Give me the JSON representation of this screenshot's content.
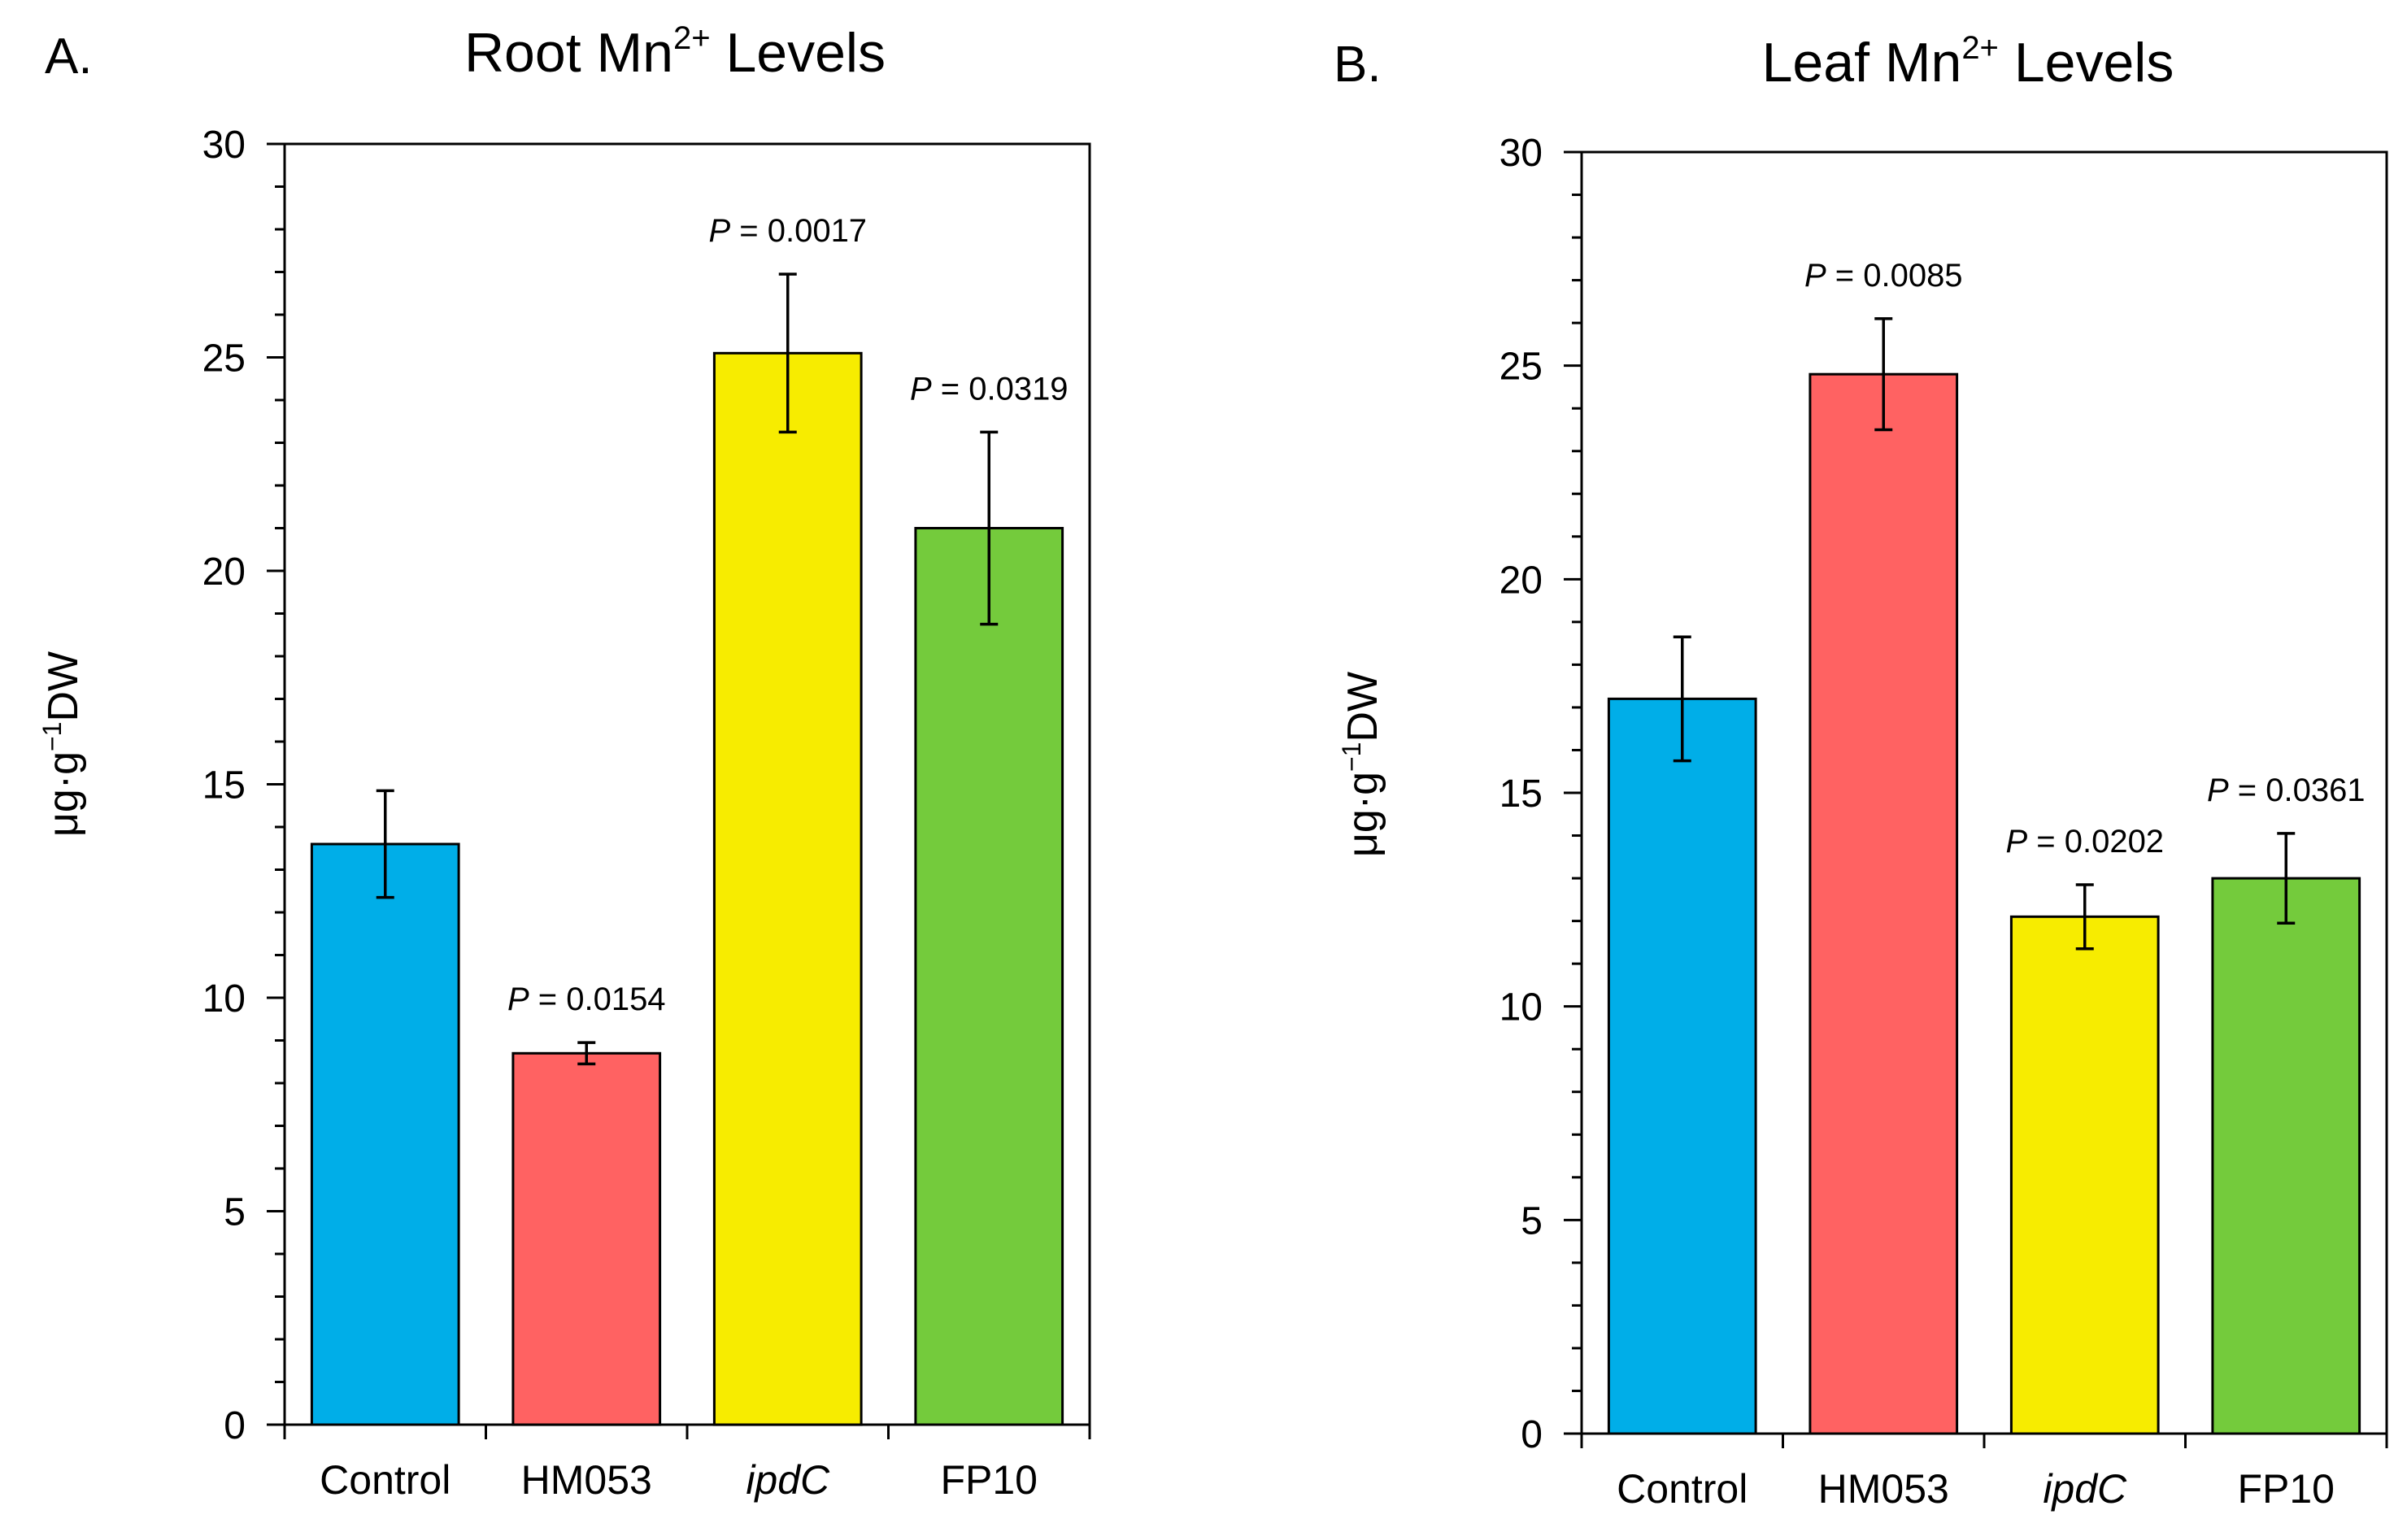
{
  "figure": {
    "colors": {
      "control": "#00aee8",
      "hm053": "#ff6262",
      "ipdc": "#f7ec00",
      "fp10": "#74cb3c",
      "axis": "#000000"
    }
  },
  "chart_data": [
    {
      "type": "bar",
      "panel_letter": "A.",
      "title": {
        "prefix": "Root Mn",
        "superscript": "2+",
        "suffix": " Levels"
      },
      "ylabel": {
        "prefix": "μg·g",
        "superscript": "−1",
        "suffix": "DW"
      },
      "xlabel": "",
      "ylim": [
        0,
        30
      ],
      "yticks": [
        "0",
        "5",
        "10",
        "15",
        "20",
        "25",
        "30"
      ],
      "categories": [
        {
          "label": "Control",
          "italic": false
        },
        {
          "label": "HM053",
          "italic": false
        },
        {
          "label": "ipdC",
          "italic": true
        },
        {
          "label": "FP10",
          "italic": false
        }
      ],
      "values": [
        13.6,
        8.7,
        25.1,
        21.0
      ],
      "errors": [
        1.25,
        0.25,
        1.85,
        2.25
      ],
      "pvalues": [
        null,
        {
          "label": "P",
          "text": " = 0.0154"
        },
        {
          "label": "P",
          "text": " = 0.0017"
        },
        {
          "label": "P",
          "text": " = 0.0319"
        }
      ]
    },
    {
      "type": "bar",
      "panel_letter": "B.",
      "title": {
        "prefix": "Leaf Mn",
        "superscript": "2+",
        "suffix": " Levels"
      },
      "ylabel": {
        "prefix": "μg·g",
        "superscript": "−1",
        "suffix": "DW"
      },
      "xlabel": "",
      "ylim": [
        0,
        30
      ],
      "yticks": [
        "0",
        "5",
        "10",
        "15",
        "20",
        "25",
        "30"
      ],
      "categories": [
        {
          "label": "Control",
          "italic": false
        },
        {
          "label": "HM053",
          "italic": false
        },
        {
          "label": "ipdC",
          "italic": true
        },
        {
          "label": "FP10",
          "italic": false
        }
      ],
      "values": [
        17.2,
        24.8,
        12.1,
        13.0
      ],
      "errors": [
        1.45,
        1.3,
        0.75,
        1.05
      ],
      "pvalues": [
        null,
        {
          "label": "P",
          "text": " = 0.0085"
        },
        {
          "label": "P",
          "text": " = 0.0202"
        },
        {
          "label": "P",
          "text": " = 0.0361"
        }
      ]
    }
  ]
}
